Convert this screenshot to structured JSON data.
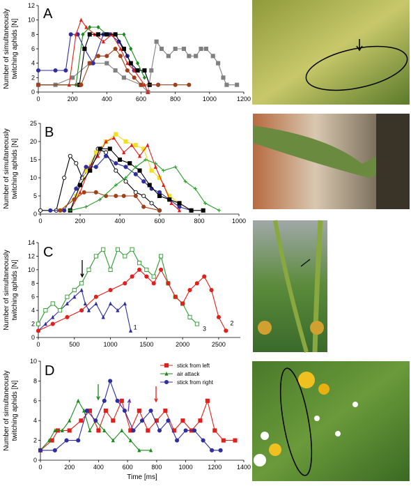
{
  "chart_data": [
    {
      "type": "line",
      "label": "A",
      "ylabel": [
        "Number of simultaneously",
        "twitching aphids [N]"
      ],
      "xlim": [
        0,
        1200
      ],
      "xticks": [
        0,
        200,
        400,
        600,
        800,
        1000,
        1200
      ],
      "ylim": [
        0,
        12
      ],
      "yticks": [
        0,
        2,
        4,
        6,
        8,
        10,
        12
      ],
      "series": [
        {
          "color": "#808080",
          "marker": "square",
          "x": [
            0,
            100,
            200,
            300,
            400,
            450,
            500,
            600,
            640,
            660,
            690,
            720,
            760,
            800,
            850,
            880,
            920,
            950,
            980,
            1020,
            1050,
            1080,
            1100,
            1160
          ],
          "values": [
            1,
            1,
            2,
            4,
            4,
            3,
            2,
            1,
            0,
            3,
            7,
            6,
            5,
            6,
            6,
            5,
            5,
            6,
            6,
            5,
            4,
            2,
            1,
            1
          ]
        },
        {
          "color": "#2e2e9e",
          "marker": "circle",
          "x": [
            0,
            100,
            160,
            190,
            230,
            270,
            320,
            380,
            420,
            470,
            520,
            560,
            620,
            650,
            700
          ],
          "values": [
            3,
            3,
            3,
            8,
            8,
            6,
            4,
            8,
            8,
            7,
            5,
            3,
            3,
            1,
            1
          ]
        },
        {
          "color": "#e0201c",
          "marker": "triangle",
          "x": [
            0,
            180,
            220,
            250,
            280,
            330,
            380,
            430,
            480,
            520,
            560,
            620,
            640
          ],
          "values": [
            1,
            1,
            8,
            10,
            9,
            8,
            7,
            8,
            6,
            4,
            3,
            1,
            0
          ]
        },
        {
          "color": "#1a8a1a",
          "marker": "diamond",
          "x": [
            0,
            220,
            260,
            300,
            350,
            400,
            450,
            500,
            540,
            580,
            620
          ],
          "values": [
            1,
            1,
            8,
            9,
            9,
            8,
            8,
            8,
            6,
            4,
            2
          ]
        },
        {
          "color": "#000000",
          "marker": "square",
          "x": [
            240,
            270,
            300,
            350,
            400,
            450,
            500,
            540,
            580,
            620,
            650
          ],
          "values": [
            1,
            6,
            8,
            8,
            8,
            8,
            6,
            4,
            3,
            3,
            1
          ]
        },
        {
          "color": "#a0401a",
          "marker": "circle",
          "x": [
            0,
            250,
            300,
            350,
            400,
            450,
            480,
            520,
            560,
            600,
            700,
            800,
            880
          ],
          "values": [
            1,
            1,
            4,
            5,
            5,
            6,
            5,
            3,
            2,
            1,
            1,
            1,
            1
          ]
        }
      ]
    },
    {
      "type": "line",
      "label": "B",
      "ylabel": [
        "Number of simultaneously",
        "twitching aphids [N]"
      ],
      "xlim": [
        0,
        1000
      ],
      "xticks": [
        0,
        200,
        400,
        600,
        800,
        1000
      ],
      "ylim": [
        0,
        25
      ],
      "yticks": [
        0,
        5,
        10,
        15,
        20,
        25
      ],
      "series": [
        {
          "color": "#000000",
          "marker": "open-circle",
          "x": [
            0,
            80,
            120,
            150,
            180,
            210,
            250,
            290,
            330,
            380,
            430,
            480,
            520,
            560,
            600
          ],
          "values": [
            1,
            1,
            10,
            16,
            14,
            10,
            13,
            18,
            17,
            12,
            9,
            6,
            5,
            3,
            1
          ]
        },
        {
          "color": "#f0e020",
          "marker": "square",
          "x": [
            100,
            180,
            230,
            280,
            330,
            380,
            430,
            480,
            520,
            560,
            600,
            650,
            700,
            760
          ],
          "values": [
            1,
            5,
            12,
            17,
            20,
            22,
            20,
            19,
            18,
            12,
            10,
            5,
            3,
            1
          ]
        },
        {
          "color": "#e0201c",
          "marker": "triangle",
          "x": [
            150,
            200,
            250,
            290,
            330,
            370,
            420,
            460,
            500,
            540,
            580,
            620,
            660,
            700
          ],
          "values": [
            1,
            6,
            13,
            16,
            20,
            21,
            17,
            19,
            16,
            19,
            13,
            8,
            3,
            1
          ]
        },
        {
          "color": "#2e2e9e",
          "marker": "circle",
          "x": [
            50,
            120,
            180,
            230,
            280,
            330,
            380,
            430,
            480,
            520,
            560,
            600,
            650,
            700,
            760
          ],
          "values": [
            1,
            1,
            7,
            13,
            13,
            16,
            14,
            13,
            11,
            9,
            7,
            6,
            4,
            2,
            1
          ]
        },
        {
          "color": "#000000",
          "marker": "square",
          "x": [
            150,
            200,
            250,
            300,
            350,
            400,
            450,
            500,
            550,
            600,
            650,
            700,
            760,
            820
          ],
          "values": [
            1,
            8,
            12,
            18,
            18,
            15,
            14,
            12,
            8,
            5,
            4,
            3,
            1,
            1
          ]
        },
        {
          "color": "#a0401a",
          "marker": "circle",
          "x": [
            100,
            170,
            220,
            280,
            330,
            380,
            420,
            480,
            520,
            600
          ],
          "values": [
            1,
            4,
            6,
            6,
            5,
            5,
            5,
            5,
            2,
            1
          ]
        },
        {
          "color": "#2a9a2a",
          "marker": "plus",
          "x": [
            150,
            230,
            300,
            380,
            430,
            480,
            530,
            580,
            620,
            680,
            730,
            780,
            830,
            900
          ],
          "values": [
            1,
            2,
            4,
            8,
            10,
            13,
            15,
            14,
            12,
            13,
            9,
            7,
            3,
            1
          ]
        }
      ]
    },
    {
      "type": "line",
      "label": "C",
      "ylabel": [
        "Number of simultaneously",
        "twitching aphids [N]"
      ],
      "xlim": [
        0,
        2800
      ],
      "xticks": [
        0,
        500,
        1000,
        1500,
        2000,
        2500
      ],
      "ylim": [
        0,
        14
      ],
      "yticks": [
        0,
        2,
        4,
        6,
        8,
        10,
        12,
        14
      ],
      "annotations": [
        "1",
        "2",
        "3"
      ],
      "series": [
        {
          "color": "#2e2e9e",
          "marker": "triangle",
          "x": [
            0,
            100,
            200,
            300,
            400,
            500,
            600,
            650,
            700,
            800,
            900,
            1000,
            1100,
            1200,
            1280
          ],
          "values": [
            1,
            2,
            3,
            4,
            5,
            6,
            7,
            5,
            4,
            5,
            3,
            5,
            4,
            5,
            1
          ]
        },
        {
          "color": "#2a9a2a",
          "marker": "open-square",
          "x": [
            0,
            100,
            200,
            300,
            400,
            500,
            600,
            700,
            800,
            900,
            1000,
            1100,
            1200,
            1300,
            1400,
            1500,
            1600,
            1700,
            1800,
            1900,
            2000,
            2100,
            2200
          ],
          "values": [
            2,
            4,
            5,
            4,
            6,
            7,
            8,
            10,
            12,
            13,
            10,
            13,
            12,
            13,
            11,
            10,
            9,
            12,
            8,
            6,
            5,
            3,
            2
          ]
        },
        {
          "color": "#e0201c",
          "marker": "circle",
          "x": [
            0,
            200,
            400,
            600,
            800,
            1000,
            1200,
            1300,
            1400,
            1500,
            1600,
            1700,
            1800,
            1900,
            2000,
            2100,
            2200,
            2300,
            2400,
            2500,
            2600
          ],
          "values": [
            1,
            2,
            3,
            4,
            6,
            7,
            8,
            9,
            10,
            9,
            8,
            10,
            8,
            6,
            5,
            7,
            8,
            9,
            7,
            3,
            1
          ]
        }
      ]
    },
    {
      "type": "line",
      "label": "D",
      "ylabel": [
        "Number of simultaneously",
        "twitching aphids [N]"
      ],
      "xlabel": "Time [ms]",
      "xlim": [
        0,
        1400
      ],
      "xticks": [
        0,
        200,
        400,
        600,
        800,
        1000,
        1200,
        1400
      ],
      "ylim": [
        0,
        10
      ],
      "yticks": [
        0,
        2,
        4,
        6,
        8,
        10
      ],
      "legend": "upper right",
      "series": [
        {
          "name": "stick from left",
          "color": "#e0201c",
          "marker": "square",
          "x": [
            0,
            80,
            120,
            200,
            280,
            340,
            400,
            450,
            500,
            560,
            620,
            680,
            740,
            800,
            860,
            920,
            980,
            1040,
            1100,
            1150,
            1200,
            1260,
            1340
          ],
          "values": [
            1,
            2,
            3,
            3,
            4,
            5,
            3,
            5,
            4,
            6,
            3,
            5,
            3,
            4,
            5,
            3,
            4,
            3,
            4,
            6,
            3,
            2,
            2
          ]
        },
        {
          "name": "air attack",
          "color": "#1a8a1a",
          "marker": "triangle",
          "x": [
            0,
            60,
            100,
            150,
            200,
            260,
            300,
            340,
            380,
            440,
            500,
            560,
            620,
            680,
            760
          ],
          "values": [
            1,
            2,
            3,
            3,
            4,
            6,
            5,
            3,
            4,
            3,
            2,
            3,
            2,
            1,
            1
          ]
        },
        {
          "name": "stick from right",
          "color": "#2e2e9e",
          "marker": "circle",
          "x": [
            0,
            100,
            180,
            260,
            320,
            380,
            440,
            480,
            530,
            580,
            640,
            700,
            760,
            820,
            880,
            940,
            1000,
            1060,
            1120,
            1180,
            1240
          ],
          "values": [
            1,
            1,
            2,
            2,
            5,
            4,
            6,
            8,
            6,
            5,
            3,
            4,
            5,
            3,
            4,
            2,
            3,
            3,
            2,
            1,
            1
          ]
        }
      ]
    }
  ]
}
